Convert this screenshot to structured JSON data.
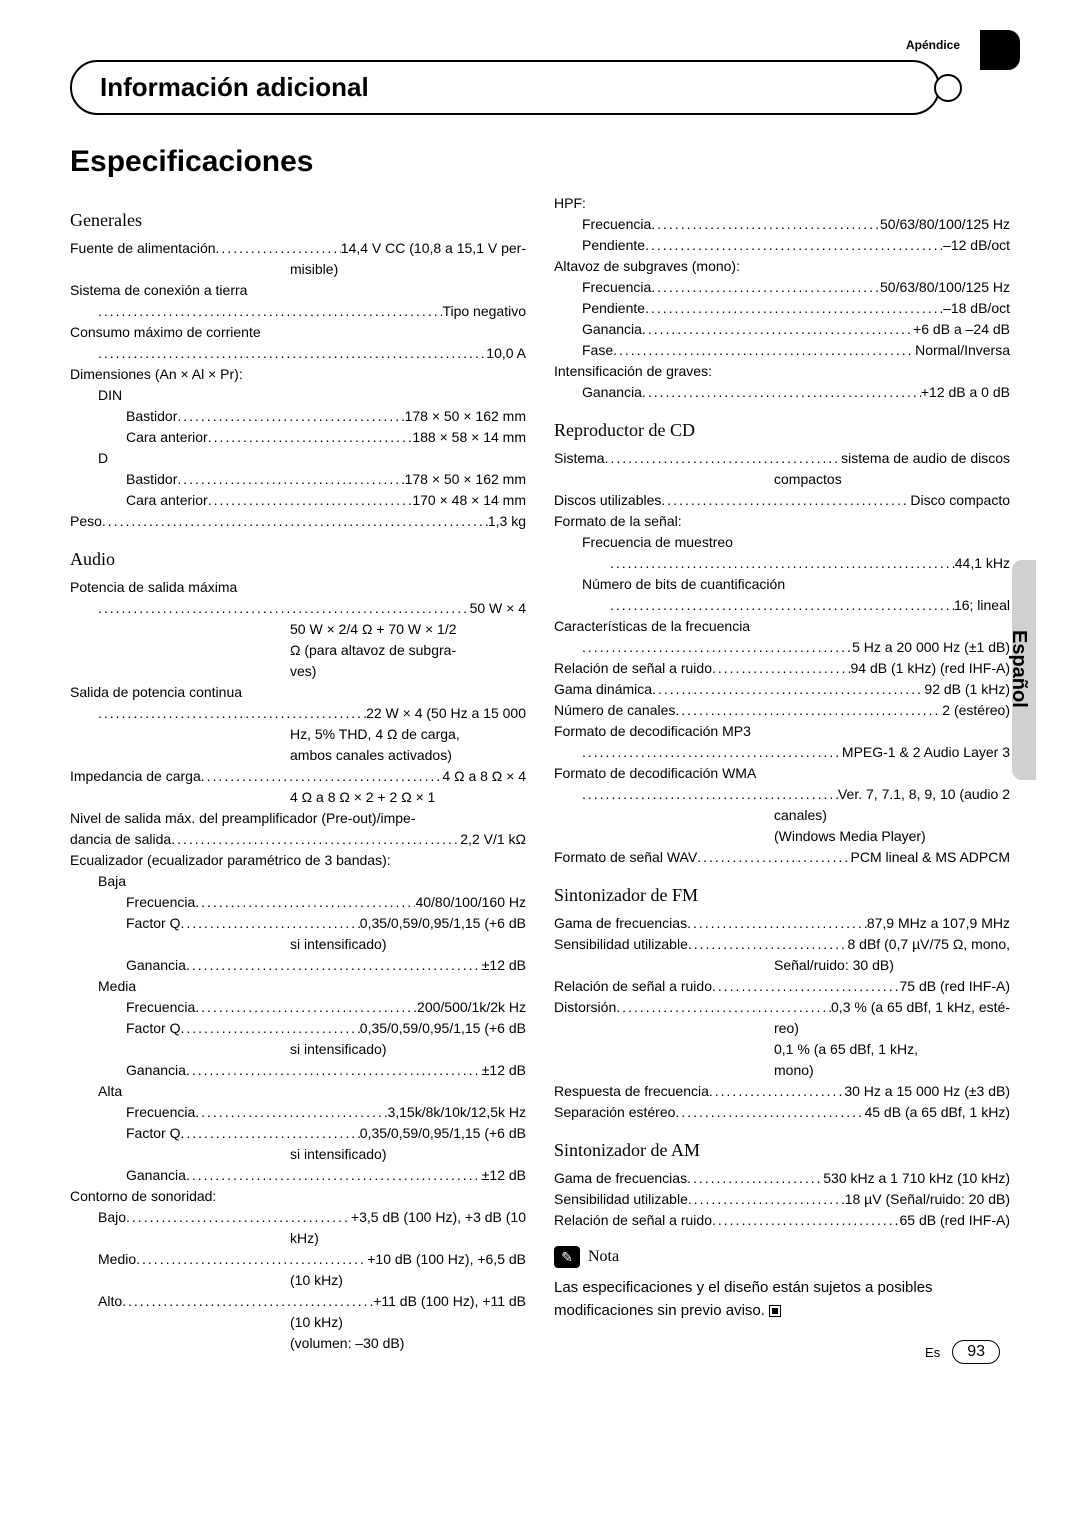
{
  "appendix_label": "Apéndice",
  "header_title": "Información adicional",
  "main_title": "Especificaciones",
  "side_language": "Español",
  "footer": {
    "lang": "Es",
    "page": "93"
  },
  "col_left": {
    "generales": {
      "head": "Generales",
      "fuente_label": "Fuente de alimentación",
      "fuente_value": "14,4 V CC (10,8 a 15,1 V per-",
      "fuente_cont": "misible)",
      "sistema_conexion_label": "Sistema de conexión a tierra",
      "sistema_conexion_value": "Tipo negativo",
      "consumo_label": "Consumo máximo de corriente",
      "consumo_value": "10,0 A",
      "dimensiones_label": "Dimensiones (An × Al × Pr):",
      "din_label": "DIN",
      "din_bastidor_label": "Bastidor",
      "din_bastidor_value": "178 × 50 × 162 mm",
      "din_cara_label": "Cara anterior",
      "din_cara_value": "188 × 58 × 14 mm",
      "d_label": "D",
      "d_bastidor_label": "Bastidor",
      "d_bastidor_value": "178 × 50 × 162 mm",
      "d_cara_label": "Cara anterior",
      "d_cara_value": "170 × 48 × 14 mm",
      "peso_label": "Peso",
      "peso_value": "1,3 kg"
    },
    "audio": {
      "head": "Audio",
      "pot_max_label": "Potencia de salida máxima",
      "pot_max_value": "50 W × 4",
      "pot_max_cont1": "50 W × 2/4 Ω + 70 W × 1/2",
      "pot_max_cont2": "Ω (para altavoz de subgra-",
      "pot_max_cont3": "ves)",
      "pot_cont_label": "Salida de potencia continua",
      "pot_cont_value": "22 W × 4 (50 Hz a 15 000",
      "pot_cont_cont1": "Hz, 5% THD, 4 Ω de carga,",
      "pot_cont_cont2": "ambos canales activados)",
      "imp_label": "Impedancia de carga",
      "imp_value": "4 Ω a 8 Ω × 4",
      "imp_cont": "4 Ω a 8 Ω × 2 + 2 Ω × 1",
      "preout_label": "Nivel de salida máx. del preamplificador (Pre-out)/impe-",
      "preout_label2": "dancia de salida",
      "preout_value": "2,2 V/1 kΩ",
      "eq_label": "Ecualizador (ecualizador paramétrico de 3 bandas):",
      "baja": "Baja",
      "baja_freq_label": "Frecuencia",
      "baja_freq_value": "40/80/100/160 Hz",
      "baja_q_label": "Factor Q",
      "baja_q_value": "0,35/0,59/0,95/1,15 (+6 dB",
      "baja_q_cont": "si intensificado)",
      "baja_gan_label": "Ganancia",
      "baja_gan_value": "±12 dB",
      "media": "Media",
      "media_freq_label": "Frecuencia",
      "media_freq_value": "200/500/1k/2k Hz",
      "media_q_label": "Factor Q",
      "media_q_value": "0,35/0,59/0,95/1,15 (+6 dB",
      "media_q_cont": "si intensificado)",
      "media_gan_label": "Ganancia",
      "media_gan_value": "±12 dB",
      "alta": "Alta",
      "alta_freq_label": "Frecuencia",
      "alta_freq_value": "3,15k/8k/10k/12,5k Hz",
      "alta_q_label": "Factor Q",
      "alta_q_value": "0,35/0,59/0,95/1,15 (+6 dB",
      "alta_q_cont": "si intensificado)",
      "alta_gan_label": "Ganancia",
      "alta_gan_value": "±12 dB",
      "contorno_label": "Contorno de sonoridad:",
      "bajo_label": "Bajo",
      "bajo_value": "+3,5 dB (100 Hz), +3 dB (10",
      "bajo_cont": "kHz)",
      "medio_label": "Medio",
      "medio_value": "+10 dB (100 Hz), +6,5 dB",
      "medio_cont": "(10 kHz)",
      "alto_label": "Alto",
      "alto_value": "+11 dB (100 Hz), +11 dB",
      "alto_cont1": "(10 kHz)",
      "alto_cont2": "(volumen: –30 dB)"
    }
  },
  "col_right": {
    "hpf_label": "HPF:",
    "hpf_freq_label": "Frecuencia",
    "hpf_freq_value": "50/63/80/100/125 Hz",
    "hpf_pend_label": "Pendiente",
    "hpf_pend_value": "–12 dB/oct",
    "sub_label": "Altavoz de subgraves (mono):",
    "sub_freq_label": "Frecuencia",
    "sub_freq_value": "50/63/80/100/125 Hz",
    "sub_pend_label": "Pendiente",
    "sub_pend_value": "–18 dB/oct",
    "sub_gan_label": "Ganancia",
    "sub_gan_value": "+6 dB a –24 dB",
    "sub_fase_label": "Fase",
    "sub_fase_value": "Normal/Inversa",
    "intens_label": "Intensificación de graves:",
    "intens_gan_label": "Ganancia",
    "intens_gan_value": "+12 dB a 0 dB",
    "cd": {
      "head": "Reproductor de CD",
      "sistema_label": "Sistema",
      "sistema_value": "sistema de audio de discos",
      "sistema_cont": "compactos",
      "discos_label": "Discos utilizables",
      "discos_value": "Disco compacto",
      "formato_label": "Formato de la señal:",
      "fmuestreo_label": "Frecuencia de muestreo",
      "fmuestreo_value": "44,1 kHz",
      "bits_label": "Número de bits de cuantificación",
      "bits_value": "16; lineal",
      "rfreq_label": "Características de la frecuencia",
      "rfreq_value": "5 Hz a 20 000 Hz (±1 dB)",
      "sn_label": "Relación de señal a ruido",
      "sn_value": "94 dB (1 kHz) (red IHF-A)",
      "gdin_label": "Gama dinámica",
      "gdin_value": "92 dB (1 kHz)",
      "chan_label": "Número de canales",
      "chan_value": "2 (estéreo)",
      "mp3_label": "Formato de decodificación MP3",
      "mp3_value": "MPEG-1 & 2 Audio Layer 3",
      "wma_label": "Formato de decodificación WMA",
      "wma_value": "Ver. 7, 7.1, 8, 9, 10 (audio 2",
      "wma_cont1": "canales)",
      "wma_cont2": "(Windows Media Player)",
      "wav_label": "Formato de señal WAV",
      "wav_value": "PCM lineal & MS ADPCM"
    },
    "fm": {
      "head": "Sintonizador de FM",
      "gama_label": "Gama de frecuencias",
      "gama_value": "87,9 MHz a 107,9 MHz",
      "sens_label": "Sensibilidad utilizable",
      "sens_value": "8 dBf (0,7 µV/75 Ω, mono,",
      "sens_cont": "Señal/ruido: 30 dB)",
      "sn_label": "Relación de señal a ruido",
      "sn_value": "75 dB (red IHF-A)",
      "dist_label": "Distorsión",
      "dist_value": "0,3 % (a 65 dBf, 1 kHz, esté-",
      "dist_cont1": "reo)",
      "dist_cont2": "0,1 % (a 65 dBf, 1 kHz,",
      "dist_cont3": "mono)",
      "resp_label": "Respuesta de frecuencia",
      "resp_value": "30 Hz a 15 000 Hz (±3 dB)",
      "sep_label": "Separación estéreo",
      "sep_value": "45 dB (a 65 dBf, 1 kHz)"
    },
    "am": {
      "head": "Sintonizador de AM",
      "gama_label": "Gama de frecuencias",
      "gama_value": "530 kHz a 1 710 kHz (10 kHz)",
      "sens_label": "Sensibilidad utilizable",
      "sens_value": "18 µV (Señal/ruido: 20 dB)",
      "sn_label": "Relación de señal a ruido",
      "sn_value": "65 dB (red IHF-A)"
    },
    "nota_label": "Nota",
    "nota_body": "Las especificaciones y el diseño están sujetos a posibles modificaciones sin previo aviso."
  }
}
